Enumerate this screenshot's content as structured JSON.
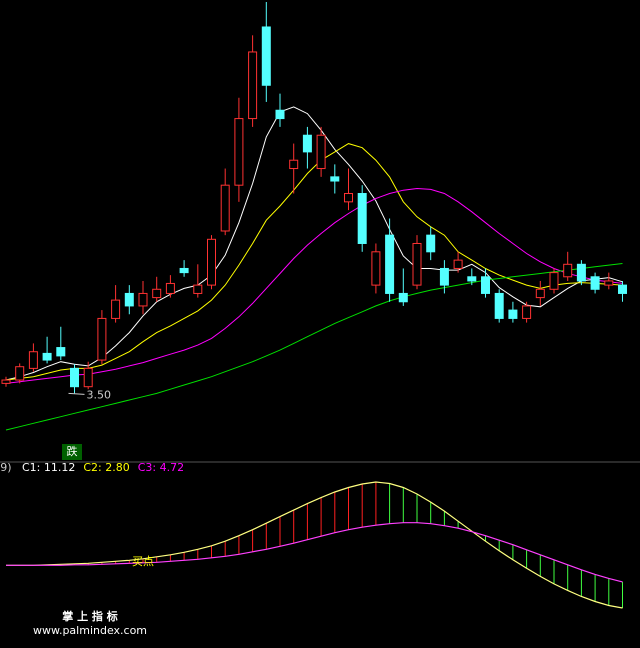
{
  "chart_data": {
    "type": "candlestick",
    "open": [
      3.62,
      3.66,
      3.8,
      3.98,
      4.05,
      3.8,
      3.58,
      3.9,
      4.4,
      4.7,
      4.55,
      4.65,
      4.7,
      5.0,
      4.7,
      4.8,
      5.45,
      6.0,
      6.8,
      7.9,
      6.9,
      6.2,
      6.6,
      6.2,
      6.1,
      5.8,
      5.9,
      4.8,
      5.4,
      4.7,
      4.8,
      5.4,
      5.0,
      5.0,
      4.9,
      4.9,
      4.7,
      4.5,
      4.4,
      4.65,
      4.75,
      4.9,
      5.05,
      4.9,
      4.8,
      4.8
    ],
    "close": [
      3.66,
      3.82,
      4.0,
      3.9,
      3.95,
      3.58,
      3.8,
      4.4,
      4.62,
      4.55,
      4.7,
      4.75,
      4.82,
      4.95,
      4.8,
      5.35,
      6.0,
      6.8,
      7.6,
      7.2,
      6.8,
      6.3,
      6.4,
      6.6,
      6.05,
      5.9,
      5.3,
      5.2,
      4.7,
      4.6,
      5.3,
      5.2,
      4.8,
      5.1,
      4.85,
      4.7,
      4.4,
      4.4,
      4.55,
      4.75,
      4.95,
      5.05,
      4.85,
      4.75,
      4.85,
      4.7
    ],
    "low": [
      3.58,
      3.62,
      3.76,
      3.86,
      3.9,
      3.5,
      3.55,
      3.85,
      4.35,
      4.45,
      4.45,
      4.6,
      4.65,
      4.9,
      4.65,
      4.75,
      5.4,
      5.8,
      6.7,
      7.0,
      6.7,
      5.9,
      6.2,
      6.1,
      5.9,
      5.7,
      5.2,
      4.7,
      4.6,
      4.55,
      4.75,
      5.1,
      4.7,
      4.95,
      4.8,
      4.65,
      4.35,
      4.35,
      4.35,
      4.55,
      4.7,
      4.85,
      4.8,
      4.7,
      4.75,
      4.6
    ],
    "high": [
      3.7,
      3.86,
      4.1,
      4.18,
      4.3,
      3.85,
      3.88,
      4.5,
      4.8,
      4.8,
      4.85,
      4.9,
      4.92,
      5.1,
      5.05,
      5.4,
      6.2,
      7.05,
      7.8,
      8.2,
      7.1,
      6.5,
      6.7,
      6.7,
      6.25,
      6.2,
      6.0,
      5.3,
      5.6,
      5.0,
      5.4,
      5.5,
      5.1,
      5.2,
      5.0,
      5.0,
      4.75,
      4.6,
      4.6,
      4.85,
      5.0,
      5.2,
      5.1,
      4.95,
      4.95,
      4.85
    ],
    "up_color": "#ff3232",
    "down_color": "#54ffff",
    "series": [
      {
        "color": "#ffffff",
        "values": [
          3.66,
          3.7,
          3.75,
          3.82,
          3.88,
          3.85,
          3.83,
          3.93,
          4.07,
          4.23,
          4.43,
          4.6,
          4.69,
          4.76,
          4.8,
          4.92,
          5.16,
          5.55,
          6.02,
          6.58,
          6.88,
          6.94,
          6.86,
          6.66,
          6.43,
          6.25,
          6.05,
          5.81,
          5.47,
          5.15,
          5.0,
          5.0,
          4.98,
          4.98,
          5.05,
          4.95,
          4.77,
          4.66,
          4.56,
          4.54,
          4.65,
          4.76,
          4.85,
          4.87,
          4.89,
          4.84
        ]
      },
      {
        "color": "#ffff00",
        "values": [
          3.66,
          3.68,
          3.7,
          3.74,
          3.78,
          3.8,
          3.8,
          3.84,
          3.92,
          4.0,
          4.12,
          4.23,
          4.31,
          4.4,
          4.49,
          4.62,
          4.8,
          5.04,
          5.3,
          5.58,
          5.75,
          5.94,
          6.14,
          6.3,
          6.4,
          6.5,
          6.45,
          6.3,
          6.1,
          5.8,
          5.62,
          5.5,
          5.4,
          5.2,
          5.1,
          5.0,
          4.92,
          4.86,
          4.8,
          4.76,
          4.8,
          4.82,
          4.83,
          4.82,
          4.81,
          4.8
        ]
      },
      {
        "color": "#ff00ff",
        "values": [
          3.62,
          3.64,
          3.66,
          3.68,
          3.7,
          3.72,
          3.73,
          3.76,
          3.79,
          3.83,
          3.87,
          3.92,
          3.97,
          4.02,
          4.08,
          4.16,
          4.28,
          4.42,
          4.58,
          4.76,
          4.94,
          5.12,
          5.28,
          5.42,
          5.55,
          5.66,
          5.76,
          5.84,
          5.9,
          5.94,
          5.96,
          5.95,
          5.9,
          5.8,
          5.68,
          5.55,
          5.42,
          5.3,
          5.18,
          5.08,
          5.0,
          4.94,
          4.9,
          4.86,
          4.84,
          4.82
        ]
      },
      {
        "color": "#00e000",
        "values": [
          3.06,
          3.1,
          3.14,
          3.18,
          3.22,
          3.26,
          3.3,
          3.34,
          3.38,
          3.42,
          3.46,
          3.5,
          3.55,
          3.6,
          3.65,
          3.7,
          3.76,
          3.82,
          3.88,
          3.95,
          4.02,
          4.1,
          4.18,
          4.26,
          4.34,
          4.41,
          4.48,
          4.55,
          4.61,
          4.66,
          4.7,
          4.74,
          4.77,
          4.8,
          4.83,
          4.86,
          4.88,
          4.9,
          4.92,
          4.94,
          4.96,
          4.98,
          5.0,
          5.02,
          5.04,
          5.06
        ]
      }
    ],
    "low_label": "3.50",
    "signal": "跌",
    "indicator": {
      "title": "(9)",
      "labels": [
        {
          "text": "C1: 11.12",
          "color": "#ffffff"
        },
        {
          "text": "C2: 2.80",
          "color": "#ffff00"
        },
        {
          "text": "C3: 4.72",
          "color": "#ff00ff"
        }
      ],
      "a": {
        "color": "#ffff80",
        "values": [
          0,
          0,
          0,
          0.1,
          0.2,
          0.3,
          0.4,
          0.6,
          0.8,
          1.0,
          1.3,
          1.7,
          2.1,
          2.6,
          3.2,
          3.9,
          4.8,
          5.9,
          7.1,
          8.4,
          9.7,
          11.0,
          12.3,
          13.5,
          14.6,
          15.5,
          16.2,
          16.6,
          16.3,
          15.5,
          14.2,
          12.6,
          10.8,
          8.8,
          6.8,
          4.8,
          2.9,
          1.1,
          -0.6,
          -2.2,
          -3.7,
          -5.0,
          -6.2,
          -7.2,
          -8.0,
          -8.5
        ]
      },
      "b": {
        "color": "#ff40ff",
        "values": [
          0,
          0,
          0,
          0,
          0,
          0.1,
          0.1,
          0.2,
          0.3,
          0.4,
          0.5,
          0.6,
          0.8,
          1.0,
          1.2,
          1.5,
          1.8,
          2.2,
          2.7,
          3.2,
          3.8,
          4.4,
          5.1,
          5.8,
          6.5,
          7.1,
          7.6,
          8.0,
          8.3,
          8.5,
          8.5,
          8.3,
          7.9,
          7.4,
          6.7,
          5.9,
          5.0,
          4.1,
          3.1,
          2.1,
          1.1,
          0.1,
          -0.9,
          -1.8,
          -2.6,
          -3.3
        ]
      },
      "rise_color": "#ff2020",
      "fall_color": "#40ff40",
      "buy_label": "买点"
    },
    "watermark": [
      "掌 上 指 标",
      "www.palmindex.com"
    ]
  }
}
